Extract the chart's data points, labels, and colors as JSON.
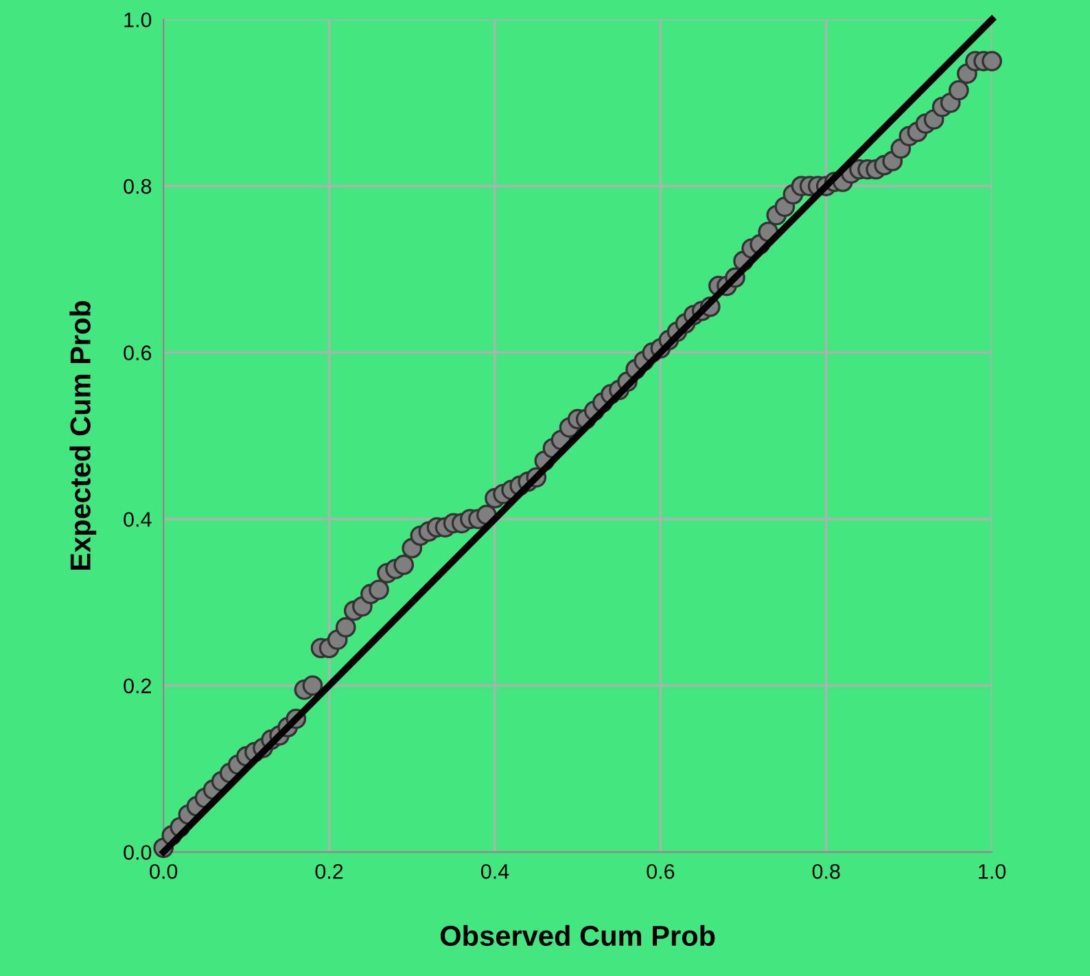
{
  "chart_data": {
    "type": "scatter",
    "xlabel": "Observed Cum Prob",
    "ylabel": "Expected Cum Prob",
    "xlim": [
      0,
      1
    ],
    "ylim": [
      0,
      1
    ],
    "xticks": [
      {
        "value": 0,
        "label": "0.0"
      },
      0.2,
      0.4,
      0.6,
      0.8,
      {
        "value": 1,
        "label": "1.0"
      }
    ],
    "yticks": [
      {
        "value": 0,
        "label": "0.0"
      },
      0.2,
      0.4,
      0.6,
      0.8,
      {
        "value": 1,
        "label": "1.0"
      }
    ],
    "grid": true,
    "marker": "circle",
    "legend": false,
    "series": [
      {
        "color": "#7f7f7f",
        "x": [
          0.0,
          0.01,
          0.02,
          0.03,
          0.04,
          0.05,
          0.06,
          0.07,
          0.08,
          0.09,
          0.1,
          0.11,
          0.12,
          0.13,
          0.14,
          0.15,
          0.16,
          0.17,
          0.18,
          0.19,
          0.2,
          0.21,
          0.22,
          0.23,
          0.24,
          0.25,
          0.26,
          0.27,
          0.28,
          0.29,
          0.3,
          0.31,
          0.32,
          0.33,
          0.34,
          0.35,
          0.36,
          0.37,
          0.38,
          0.39,
          0.4,
          0.41,
          0.42,
          0.43,
          0.44,
          0.45,
          0.46,
          0.47,
          0.48,
          0.49,
          0.5,
          0.51,
          0.52,
          0.53,
          0.54,
          0.55,
          0.56,
          0.57,
          0.58,
          0.59,
          0.6,
          0.61,
          0.62,
          0.63,
          0.64,
          0.65,
          0.66,
          0.67,
          0.68,
          0.69,
          0.7,
          0.71,
          0.72,
          0.73,
          0.74,
          0.75,
          0.76,
          0.77,
          0.78,
          0.79,
          0.8,
          0.81,
          0.82,
          0.83,
          0.84,
          0.85,
          0.86,
          0.87,
          0.88,
          0.89,
          0.9,
          0.91,
          0.92,
          0.93,
          0.94,
          0.95,
          0.96,
          0.97,
          0.98,
          0.99,
          1.0
        ],
        "values": [
          0.005,
          0.02,
          0.03,
          0.045,
          0.055,
          0.065,
          0.075,
          0.085,
          0.095,
          0.105,
          0.115,
          0.12,
          0.125,
          0.135,
          0.14,
          0.15,
          0.16,
          0.195,
          0.2,
          0.245,
          0.245,
          0.255,
          0.27,
          0.29,
          0.295,
          0.31,
          0.315,
          0.335,
          0.34,
          0.345,
          0.365,
          0.38,
          0.385,
          0.39,
          0.39,
          0.395,
          0.395,
          0.4,
          0.4,
          0.405,
          0.425,
          0.43,
          0.435,
          0.44,
          0.445,
          0.45,
          0.47,
          0.485,
          0.495,
          0.51,
          0.52,
          0.52,
          0.53,
          0.54,
          0.55,
          0.555,
          0.565,
          0.58,
          0.59,
          0.6,
          0.605,
          0.615,
          0.625,
          0.635,
          0.645,
          0.65,
          0.655,
          0.68,
          0.68,
          0.69,
          0.71,
          0.725,
          0.73,
          0.745,
          0.765,
          0.775,
          0.79,
          0.8,
          0.8,
          0.8,
          0.8,
          0.805,
          0.805,
          0.815,
          0.82,
          0.82,
          0.82,
          0.825,
          0.83,
          0.845,
          0.86,
          0.865,
          0.875,
          0.88,
          0.895,
          0.9,
          0.915,
          0.935,
          0.95,
          0.95,
          0.95
        ]
      },
      {
        "type": "line",
        "color": "#000000",
        "x": [
          0,
          1
        ],
        "values": [
          0,
          1
        ],
        "marker": "none"
      }
    ]
  }
}
